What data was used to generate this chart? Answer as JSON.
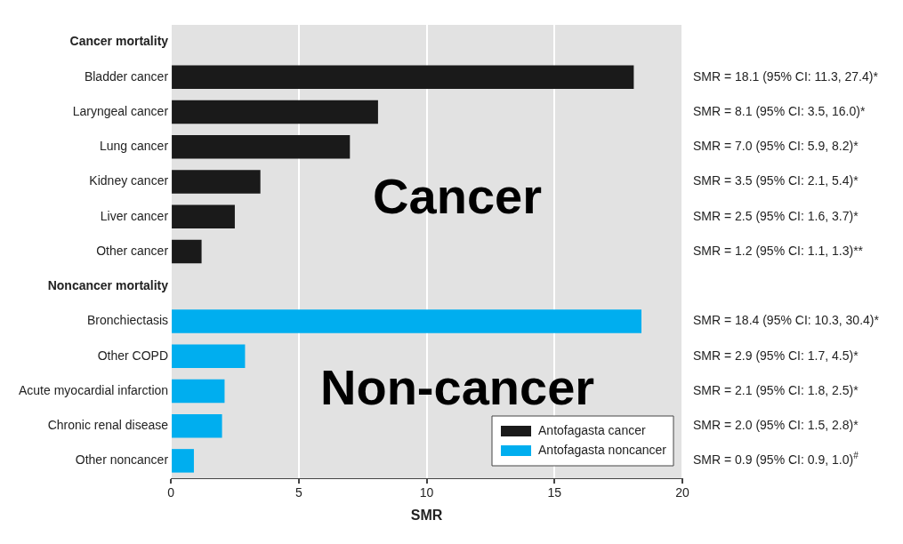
{
  "chart_data": {
    "type": "bar",
    "orientation": "horizontal",
    "categories": [
      "Cancer mortality",
      "Bladder cancer",
      "Laryngeal cancer",
      "Lung cancer",
      "Kidney cancer",
      "Liver cancer",
      "Other cancer",
      "Noncancer mortality",
      "Bronchiectasis",
      "Other COPD",
      "Acute myocardial infarction",
      "Chronic renal disease",
      "Other noncancer"
    ],
    "series": [
      {
        "name": "Antofagasta cancer",
        "color": "#1a1a1a",
        "values": [
          null,
          18.1,
          8.1,
          7.0,
          3.5,
          2.5,
          1.2,
          null,
          null,
          null,
          null,
          null,
          null
        ]
      },
      {
        "name": "Antofagasta noncancer",
        "color": "#00aeef",
        "values": [
          null,
          null,
          null,
          null,
          null,
          null,
          null,
          null,
          18.4,
          2.9,
          2.1,
          2.0,
          0.9
        ]
      }
    ],
    "xlim": [
      0,
      20
    ],
    "xticks": [
      0,
      5,
      10,
      15,
      20
    ],
    "xlabel": "SMR",
    "grid": "x",
    "legend": "bottom right",
    "annotations": [
      "Cancer",
      "Non-cancer",
      "SMR = 18.1 (95% CI: 11.3, 27.4)*",
      "SMR = 8.1 (95% CI: 3.5, 16.0)*",
      "SMR = 7.0 (95% CI: 5.9, 8.2)*",
      "SMR = 3.5 (95% CI: 2.1, 5.4)*",
      "SMR = 2.5 (95% CI: 1.6, 3.7)*",
      "SMR = 1.2 (95% CI: 1.1, 1.3)**",
      "SMR = 18.4 (95% CI: 10.3, 30.4)*",
      "SMR = 2.9 (95% CI: 1.7, 4.5)*",
      "SMR = 2.1 (95% CI: 1.8, 2.5)*",
      "SMR = 2.0 (95% CI: 1.5, 2.8)*",
      "SMR = 0.9 (95% CI: 0.9, 1.0)$^{#}$"
    ]
  }
}
